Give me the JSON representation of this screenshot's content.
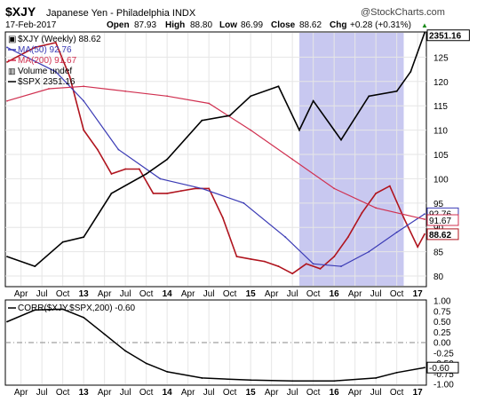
{
  "header": {
    "symbol": "$XJY",
    "name": "Japanese Yen - Philadelphia INDX",
    "watermark": "@StockCharts.com",
    "date": "17-Feb-2017",
    "open_label": "Open",
    "open_value": "87.93",
    "high_label": "High",
    "high_value": "88.80",
    "low_label": "Low",
    "low_value": "86.99",
    "close_label": "Close",
    "close_value": "88.62",
    "chg_label": "Chg",
    "chg_value": "+0.28 (+0.31%)",
    "chg_arrow": "▲"
  },
  "legend": {
    "main": "$XJY (Weekly) 88.62",
    "ma50": "MA(50) 92.76",
    "ma200": "MA(200) 91.67",
    "volume": "Volume undef",
    "spx": "$SPX 2351.16"
  },
  "lower_panel": {
    "title": "CORR($XJY,$SPX,200) -0.60"
  },
  "colors": {
    "price": "#b0141e",
    "ma50": "#3b3bb5",
    "ma200": "#d03050",
    "spx": "#000000",
    "shade": "#c8c8f0",
    "corr": "#000000",
    "chg_arrow": "#1a8a1a"
  },
  "chart_data": [
    {
      "type": "line",
      "title": "$XJY Japanese Yen - Philadelphia INDX",
      "x_ticks": [
        "Apr",
        "Jul",
        "Oct",
        "13",
        "Apr",
        "Jul",
        "Oct",
        "14",
        "Apr",
        "Jul",
        "Oct",
        "15",
        "Apr",
        "Jul",
        "Oct",
        "16",
        "Apr",
        "Jul",
        "Oct",
        "17"
      ],
      "x_range": [
        "2012-02",
        "2017-02"
      ],
      "ylim": [
        78,
        130
      ],
      "right_ticks": [
        "80",
        "85",
        "90",
        "95",
        "100",
        "105",
        "110",
        "115",
        "120",
        "125"
      ],
      "right_labels": {
        "ma50": "92.76",
        "ma200": "91.67",
        "price": "88.62",
        "spx": "2351.16"
      },
      "shaded_range": [
        "2015-08",
        "2016-11"
      ],
      "series": [
        {
          "name": "$XJY (Weekly)",
          "x": [
            "2012-02",
            "2012-06",
            "2012-09",
            "2012-11",
            "2013-01",
            "2013-03",
            "2013-05",
            "2013-07",
            "2013-09",
            "2013-11",
            "2014-01",
            "2014-03",
            "2014-05",
            "2014-07",
            "2014-09",
            "2014-11",
            "2015-01",
            "2015-03",
            "2015-05",
            "2015-07",
            "2015-09",
            "2015-11",
            "2016-01",
            "2016-03",
            "2016-05",
            "2016-07",
            "2016-09",
            "2016-11",
            "2017-01",
            "2017-02"
          ],
          "values": [
            124,
            127,
            128,
            121,
            110,
            106,
            101,
            102,
            102,
            97,
            97,
            97.5,
            98,
            98,
            92,
            84,
            83.5,
            83,
            82,
            80.5,
            82.5,
            81.5,
            84,
            88,
            93,
            97,
            98.5,
            92,
            86,
            88.62
          ]
        },
        {
          "name": "MA(50)",
          "x": [
            "2012-02",
            "2012-09",
            "2013-01",
            "2013-06",
            "2013-12",
            "2014-06",
            "2014-12",
            "2015-06",
            "2015-10",
            "2016-02",
            "2016-06",
            "2016-10",
            "2017-02"
          ],
          "values": [
            127,
            122,
            116,
            106,
            100,
            98,
            95,
            88,
            82.5,
            82,
            85,
            89,
            92.76
          ]
        },
        {
          "name": "MA(200)",
          "x": [
            "2012-02",
            "2012-08",
            "2013-01",
            "2013-07",
            "2014-01",
            "2014-07",
            "2015-01",
            "2015-07",
            "2016-01",
            "2016-07",
            "2017-02"
          ],
          "values": [
            116,
            118.5,
            119,
            118,
            117,
            115.5,
            110,
            104,
            98,
            94,
            91.67
          ]
        },
        {
          "name": "$SPX",
          "x": [
            "2012-02",
            "2012-06",
            "2012-10",
            "2013-01",
            "2013-05",
            "2013-10",
            "2014-01",
            "2014-06",
            "2014-10",
            "2015-01",
            "2015-05",
            "2015-08",
            "2015-10",
            "2016-01",
            "2016-02",
            "2016-06",
            "2016-10",
            "2016-12",
            "2017-02"
          ],
          "values": [
            84,
            82,
            87,
            88,
            97,
            101,
            104,
            112,
            113,
            117,
            119,
            110,
            116,
            110,
            108,
            117,
            118,
            122,
            130
          ]
        }
      ]
    },
    {
      "type": "line",
      "title": "CORR($XJY,$SPX,200) -0.60",
      "ylim": [
        -1.0,
        1.0
      ],
      "right_ticks": [
        "1.00",
        "0.75",
        "0.50",
        "0.25",
        "0.00",
        "-0.25",
        "-0.50",
        "-0.75",
        "-1.00"
      ],
      "right_labels": {
        "corr": "-0.60"
      },
      "series": [
        {
          "name": "CORR($XJY,$SPX,200)",
          "x": [
            "2012-02",
            "2012-06",
            "2012-10",
            "2013-01",
            "2013-04",
            "2013-07",
            "2013-10",
            "2014-01",
            "2014-06",
            "2015-01",
            "2015-07",
            "2016-01",
            "2016-07",
            "2016-10",
            "2017-02"
          ],
          "values": [
            0.5,
            0.78,
            0.8,
            0.6,
            0.2,
            -0.2,
            -0.5,
            -0.7,
            -0.85,
            -0.9,
            -0.92,
            -0.92,
            -0.85,
            -0.72,
            -0.6
          ]
        }
      ]
    }
  ]
}
